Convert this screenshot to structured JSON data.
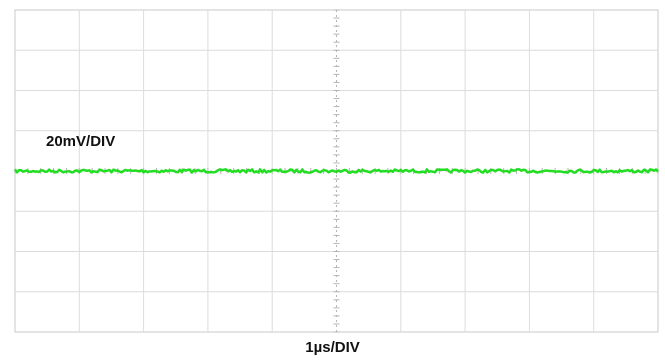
{
  "chart_data": {
    "type": "line",
    "title": "",
    "annotations": {
      "vertical_scale": "20mV/DIV",
      "horizontal_scale": "1µs/DIV"
    },
    "grid": true,
    "divisions": {
      "x": 10,
      "y": 8
    },
    "xlim": [
      0,
      10
    ],
    "ylim": [
      -4,
      4
    ],
    "series": [
      {
        "color": "#22dd22",
        "x": [
          0,
          1,
          2,
          3,
          4,
          5,
          6,
          7,
          8,
          9,
          10
        ],
        "values": [
          0,
          0,
          0,
          0,
          0,
          0,
          0,
          0,
          0,
          0,
          0
        ]
      }
    ]
  },
  "colors": {
    "trace": "#22dd22",
    "grid": "#dcdcdc",
    "center_axis": "#b4b4b4",
    "frame": "#c8c8c8",
    "background": "#ffffff"
  }
}
